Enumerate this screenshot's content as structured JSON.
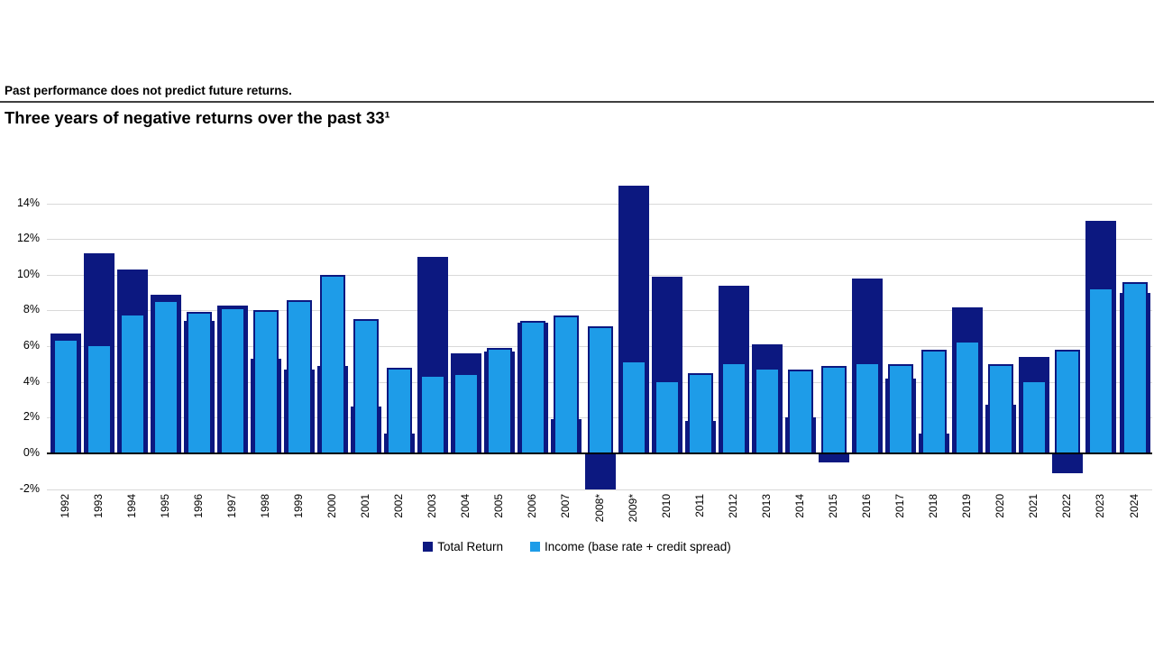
{
  "header": {
    "disclaimer": "Past performance does not predict future returns.",
    "title": "Three years of negative returns over the past 33¹"
  },
  "chart_data": {
    "type": "bar",
    "title": "Three years of negative returns over the past 33¹",
    "categories": [
      "1992",
      "1993",
      "1994",
      "1995",
      "1996",
      "1997",
      "1998",
      "1999",
      "2000",
      "2001",
      "2002",
      "2003",
      "2004",
      "2005",
      "2006",
      "2007",
      "2008*",
      "2009*",
      "2010",
      "2011",
      "2012",
      "2013",
      "2014",
      "2015",
      "2016",
      "2017",
      "2018",
      "2019",
      "2020",
      "2021",
      "2022",
      "2023",
      "2024"
    ],
    "series": [
      {
        "name": "Total Return",
        "color": "#0c1880",
        "values": [
          6.7,
          11.2,
          10.3,
          8.9,
          7.4,
          8.3,
          5.3,
          4.7,
          4.9,
          2.6,
          1.1,
          11.0,
          5.6,
          5.7,
          7.3,
          1.9,
          -2.0,
          15.0,
          9.9,
          1.8,
          9.4,
          6.1,
          2.0,
          -0.5,
          9.8,
          4.2,
          1.1,
          8.2,
          2.7,
          5.4,
          -1.1,
          13.0,
          9.0
        ]
      },
      {
        "name": "Income (base rate + credit spread)",
        "color": "#1e9ce8",
        "values": [
          6.4,
          6.1,
          7.8,
          8.6,
          7.9,
          8.2,
          8.0,
          8.6,
          10.0,
          7.5,
          4.8,
          4.4,
          4.5,
          5.9,
          7.4,
          7.7,
          7.1,
          5.2,
          4.1,
          4.5,
          5.1,
          4.8,
          4.7,
          4.9,
          5.1,
          5.0,
          5.8,
          6.3,
          5.0,
          4.1,
          5.8,
          9.3,
          9.6
        ]
      }
    ],
    "xlabel": "",
    "ylabel": "",
    "ylim": [
      -2.5,
      15.6
    ],
    "y_ticks": [
      {
        "label": "14%",
        "value": 14
      },
      {
        "label": "12%",
        "value": 12
      },
      {
        "label": "10%",
        "value": 10
      },
      {
        "label": "8%",
        "value": 8
      },
      {
        "label": "6%",
        "value": 6
      },
      {
        "label": "4%",
        "value": 4
      },
      {
        "label": "2%",
        "value": 2
      },
      {
        "label": "0%",
        "value": 0
      },
      {
        "label": "-2%",
        "value": -2
      }
    ],
    "grid": "horizontal",
    "legend_position": "bottom"
  }
}
